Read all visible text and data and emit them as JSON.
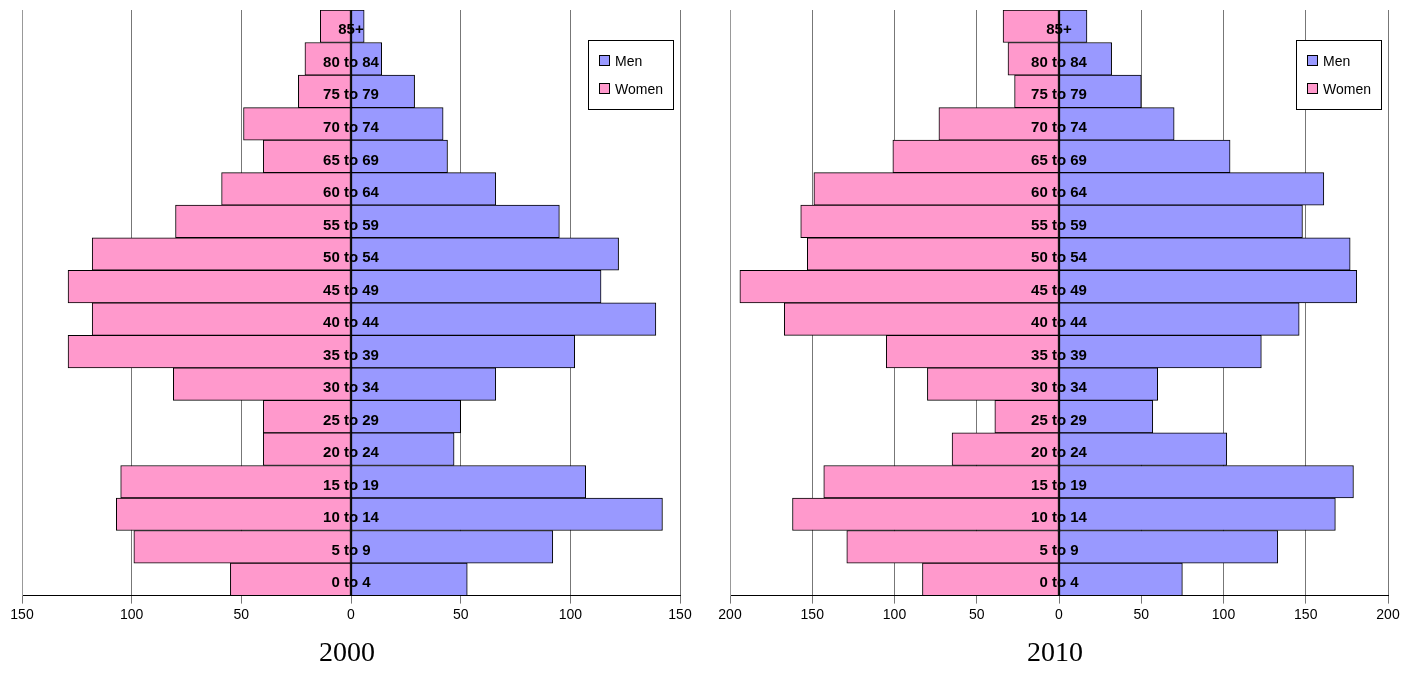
{
  "chart_data": [
    {
      "type": "bar",
      "orientation": "horizontal",
      "stacked": true,
      "title": "2000",
      "categories": [
        "85+",
        "80 to 84",
        "75 to 79",
        "70 to 74",
        "65 to 69",
        "60 to 64",
        "55 to 59",
        "50 to 54",
        "45 to 49",
        "40 to 44",
        "35 to 39",
        "30 to 34",
        "25 to 29",
        "20 to 24",
        "15 to 19",
        "10 to 14",
        "5 to 9",
        "0 to 4"
      ],
      "series": [
        {
          "name": "Men",
          "color": "#9999ff",
          "values": [
            6,
            14,
            29,
            42,
            44,
            66,
            95,
            122,
            114,
            139,
            102,
            66,
            50,
            47,
            107,
            142,
            92,
            53
          ]
        },
        {
          "name": "Women",
          "color": "#ff99cc",
          "values": [
            -14,
            -21,
            -24,
            -49,
            -40,
            -59,
            -80,
            -118,
            -129,
            -118,
            -129,
            -81,
            -40,
            -40,
            -105,
            -107,
            -99,
            -55
          ]
        }
      ],
      "xlim": [
        -150,
        150
      ],
      "xticks": [
        {
          "value": -150,
          "label": "150"
        },
        {
          "value": -100,
          "label": "100"
        },
        {
          "value": -50,
          "label": "50"
        },
        0,
        50,
        100,
        150
      ],
      "grid": "x",
      "legend": "top right"
    },
    {
      "type": "bar",
      "orientation": "horizontal",
      "stacked": true,
      "title": "2010",
      "categories": [
        "85+",
        "80 to 84",
        "75 to 79",
        "70 to 74",
        "65 to 69",
        "60 to 64",
        "55 to 59",
        "50 to 54",
        "45 to 49",
        "40 to 44",
        "35 to 39",
        "30 to 34",
        "25 to 29",
        "20 to 24",
        "15 to 19",
        "10 to 14",
        "5 to 9",
        "0 to 4"
      ],
      "series": [
        {
          "name": "Men",
          "color": "#9999ff",
          "values": [
            17,
            32,
            50,
            70,
            104,
            161,
            148,
            177,
            181,
            146,
            123,
            60,
            57,
            102,
            179,
            168,
            133,
            75
          ]
        },
        {
          "name": "Women",
          "color": "#ff99cc",
          "values": [
            -34,
            -31,
            -27,
            -73,
            -101,
            -149,
            -157,
            -153,
            -194,
            -167,
            -105,
            -80,
            -39,
            -65,
            -143,
            -162,
            -129,
            -83
          ]
        }
      ],
      "xlim": [
        -200,
        200
      ],
      "xticks": [
        {
          "value": -200,
          "label": "200"
        },
        {
          "value": -150,
          "label": "150"
        },
        {
          "value": -100,
          "label": "100"
        },
        {
          "value": -50,
          "label": "50"
        },
        0,
        50,
        100,
        150,
        200
      ],
      "grid": "x",
      "legend": "top right"
    }
  ]
}
